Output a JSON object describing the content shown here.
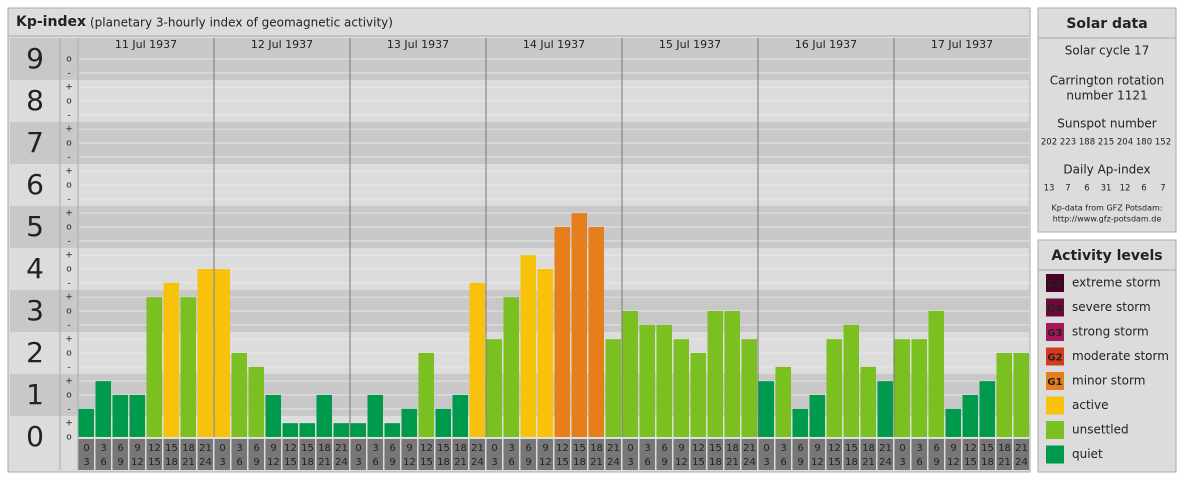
{
  "title": "Kp-index",
  "subtitle": "(planetary 3-hourly index of geomagnetic activity)",
  "chart_data": {
    "type": "bar",
    "ylim": [
      0,
      9.5
    ],
    "yticks": [
      0,
      1,
      2,
      3,
      4,
      5,
      6,
      7,
      8,
      9
    ],
    "minor_ticks": [
      {
        "value": 0,
        "label": "o"
      },
      {
        "value": 0.33,
        "label": "+"
      },
      {
        "value": 0.67,
        "label": "-"
      },
      {
        "value": 1,
        "label": "o"
      },
      {
        "value": 1.33,
        "label": "+"
      },
      {
        "value": 1.67,
        "label": "-"
      },
      {
        "value": 2,
        "label": "o"
      },
      {
        "value": 2.33,
        "label": "+"
      },
      {
        "value": 2.67,
        "label": "-"
      },
      {
        "value": 3,
        "label": "o"
      },
      {
        "value": 3.33,
        "label": "+"
      },
      {
        "value": 3.67,
        "label": "-"
      },
      {
        "value": 4,
        "label": "o"
      },
      {
        "value": 4.33,
        "label": "+"
      },
      {
        "value": 4.67,
        "label": "-"
      },
      {
        "value": 5,
        "label": "o"
      },
      {
        "value": 5.33,
        "label": "+"
      },
      {
        "value": 5.67,
        "label": "-"
      },
      {
        "value": 6,
        "label": "o"
      },
      {
        "value": 6.33,
        "label": "+"
      },
      {
        "value": 6.67,
        "label": "-"
      },
      {
        "value": 7,
        "label": "o"
      },
      {
        "value": 7.33,
        "label": "+"
      },
      {
        "value": 7.67,
        "label": "-"
      },
      {
        "value": 8,
        "label": "o"
      },
      {
        "value": 8.33,
        "label": "+"
      },
      {
        "value": 8.67,
        "label": "-"
      },
      {
        "value": 9,
        "label": "o"
      }
    ],
    "hours": [
      [
        0,
        3
      ],
      [
        3,
        6
      ],
      [
        6,
        9
      ],
      [
        9,
        12
      ],
      [
        12,
        15
      ],
      [
        15,
        18
      ],
      [
        18,
        21
      ],
      [
        21,
        24
      ]
    ],
    "days": [
      {
        "label": "11 Jul 1937",
        "values": [
          0.67,
          1.33,
          1,
          1,
          3.33,
          3.67,
          3.33,
          4
        ],
        "colors": [
          "#009a4c",
          "#009a4c",
          "#009a4c",
          "#009a4c",
          "#7ac021",
          "#f9c20a",
          "#7ac021",
          "#f9c20a"
        ]
      },
      {
        "label": "12 Jul 1937",
        "values": [
          4,
          2,
          1.67,
          1,
          0.33,
          0.33,
          1,
          0.33
        ],
        "colors": [
          "#f9c20a",
          "#7ac021",
          "#7ac021",
          "#009a4c",
          "#009a4c",
          "#009a4c",
          "#009a4c",
          "#009a4c"
        ]
      },
      {
        "label": "13 Jul 1937",
        "values": [
          0.33,
          1,
          0.33,
          0.67,
          2,
          0.67,
          1,
          3.67
        ],
        "colors": [
          "#009a4c",
          "#009a4c",
          "#009a4c",
          "#009a4c",
          "#7ac021",
          "#009a4c",
          "#009a4c",
          "#f9c20a"
        ]
      },
      {
        "label": "14 Jul 1937",
        "values": [
          2.33,
          3.33,
          4.33,
          4,
          5,
          5.33,
          5,
          2.33
        ],
        "colors": [
          "#7ac021",
          "#7ac021",
          "#f9c20a",
          "#f9c20a",
          "#e67e1b",
          "#e67e1b",
          "#e67e1b",
          "#7ac021"
        ]
      },
      {
        "label": "15 Jul 1937",
        "values": [
          3,
          2.67,
          2.67,
          2.33,
          2,
          3,
          3,
          2.33
        ],
        "colors": [
          "#7ac021",
          "#7ac021",
          "#7ac021",
          "#7ac021",
          "#7ac021",
          "#7ac021",
          "#7ac021",
          "#7ac021"
        ]
      },
      {
        "label": "16 Jul 1937",
        "values": [
          1.33,
          1.67,
          0.67,
          1,
          2.33,
          2.67,
          1.67,
          1.33
        ],
        "colors": [
          "#009a4c",
          "#7ac021",
          "#009a4c",
          "#009a4c",
          "#7ac021",
          "#7ac021",
          "#7ac021",
          "#009a4c"
        ]
      },
      {
        "label": "17 Jul 1937",
        "values": [
          2.33,
          2.33,
          3,
          0.67,
          1,
          1.33,
          2,
          2
        ],
        "colors": [
          "#7ac021",
          "#7ac021",
          "#7ac021",
          "#009a4c",
          "#009a4c",
          "#009a4c",
          "#7ac021",
          "#7ac021"
        ]
      }
    ]
  },
  "solar": {
    "title": "Solar data",
    "cycle": "Solar cycle 17",
    "carrington": [
      "Carrington rotation",
      "number 1121"
    ],
    "sunspot_title": "Sunspot number",
    "sunspots": [
      202,
      223,
      188,
      215,
      204,
      180,
      152
    ],
    "ap_title": "Daily Ap-index",
    "ap": [
      13,
      7,
      6,
      31,
      12,
      6,
      7
    ],
    "source": [
      "Kp-data from GFZ Potsdam:",
      "http://www.gfz-potsdam.de"
    ]
  },
  "levels": {
    "title": "Activity levels",
    "items": [
      {
        "code": "G5",
        "name": "extreme storm",
        "color": "#4a0026"
      },
      {
        "code": "G4",
        "name": "severe storm",
        "color": "#6d0a3a"
      },
      {
        "code": "G3",
        "name": "strong storm",
        "color": "#a5165a"
      },
      {
        "code": "G2",
        "name": "moderate storm",
        "color": "#d43b1e"
      },
      {
        "code": "G1",
        "name": "minor storm",
        "color": "#e67e1b"
      },
      {
        "name": "active",
        "color": "#f9c20a"
      },
      {
        "name": "unsettled",
        "color": "#7ac021"
      },
      {
        "name": "quiet",
        "color": "#009a4c"
      }
    ]
  }
}
